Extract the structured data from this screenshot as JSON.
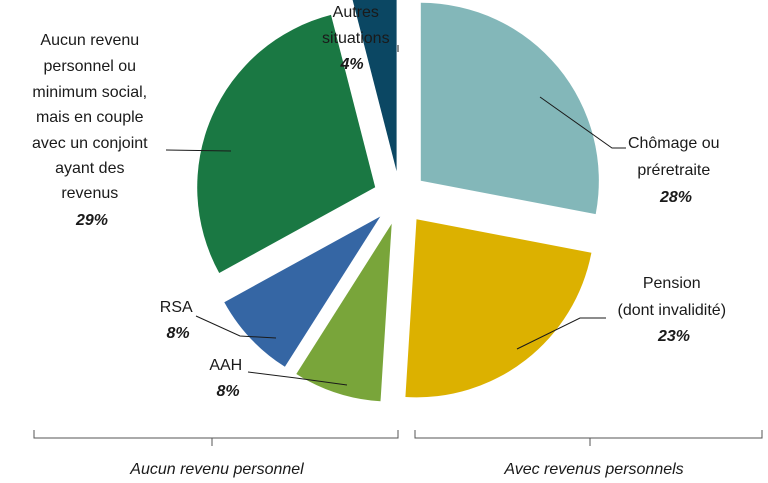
{
  "chart_data": {
    "type": "pie",
    "title": "",
    "slices": [
      {
        "key": "chomage",
        "label_lines": [
          "Chômage ou",
          "préretraite"
        ],
        "value": 28,
        "value_label": "28%",
        "color": "#83b7b9"
      },
      {
        "key": "pension",
        "label_lines": [
          "Pension",
          "(dont invalidité)"
        ],
        "value": 23,
        "value_label": "23%",
        "color": "#dcb100"
      },
      {
        "key": "aah",
        "label_lines": [
          "AAH"
        ],
        "value": 8,
        "value_label": "8%",
        "color": "#79a53a"
      },
      {
        "key": "rsa",
        "label_lines": [
          "RSA"
        ],
        "value": 8,
        "value_label": "8%",
        "color": "#3566a4"
      },
      {
        "key": "couple",
        "label_lines": [
          "Aucun revenu",
          "personnel ou",
          "minimum social,",
          "mais en couple",
          "avec un conjoint",
          "ayant des",
          "revenus"
        ],
        "value": 29,
        "value_label": "29%",
        "color": "#1a7843"
      },
      {
        "key": "autres",
        "label_lines": [
          "Autres",
          "situations"
        ],
        "value": 4,
        "value_label": "4%",
        "color": "#0b4763"
      }
    ],
    "groups": [
      {
        "key": "aucun",
        "label": "Aucun revenu personnel"
      },
      {
        "key": "avec",
        "label": "Avec revenus personnels"
      }
    ]
  }
}
